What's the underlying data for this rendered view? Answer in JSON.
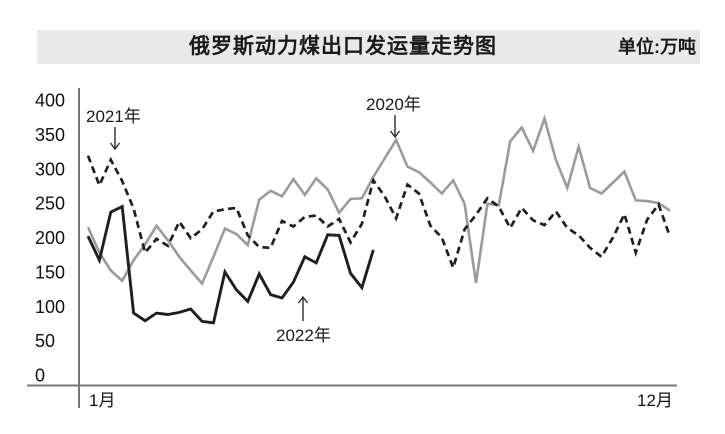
{
  "header": {
    "title": "俄罗斯动力煤出口发运量走势图",
    "unit": "单位:万吨"
  },
  "chart_data": {
    "type": "line",
    "title": "俄罗斯动力煤出口发运量走势图",
    "unit_label": "单位:万吨",
    "xlabel": "",
    "ylabel": "",
    "ylim": [
      0,
      400
    ],
    "yticks": [
      400,
      350,
      300,
      250,
      200,
      150,
      100,
      50,
      0
    ],
    "x_axis": {
      "start_label": "1月",
      "end_label": "12月",
      "frequency": "weekly"
    },
    "grid": false,
    "legend_position": "inline-annotations",
    "series": [
      {
        "name": "2020年",
        "style": "solid",
        "color": "#9b9b9b",
        "values": [
          215,
          178,
          152,
          137,
          167,
          190,
          217,
          196,
          172,
          152,
          133,
          172,
          213,
          205,
          189,
          255,
          268,
          260,
          285,
          262,
          286,
          270,
          236,
          256,
          257,
          288,
          315,
          342,
          303,
          295,
          280,
          264,
          283,
          249,
          134,
          249,
          247,
          340,
          360,
          326,
          373,
          313,
          272,
          332,
          272,
          264,
          280,
          296,
          254,
          253,
          250,
          239
        ]
      },
      {
        "name": "2021年",
        "style": "dashed",
        "color": "#1f1f1f",
        "values": [
          319,
          276,
          313,
          282,
          242,
          178,
          198,
          188,
          223,
          199,
          212,
          238,
          241,
          243,
          203,
          186,
          185,
          224,
          216,
          230,
          232,
          216,
          227,
          193,
          220,
          283,
          260,
          228,
          277,
          264,
          217,
          200,
          156,
          212,
          233,
          257,
          245,
          214,
          243,
          225,
          218,
          238,
          214,
          203,
          185,
          172,
          200,
          234,
          178,
          226,
          248,
          201
        ]
      },
      {
        "name": "2022年",
        "style": "solid",
        "color": "#1f1f1f",
        "values": [
          202,
          167,
          237,
          245,
          90,
          79,
          90,
          88,
          91,
          96,
          78,
          76,
          150,
          124,
          107,
          147,
          117,
          112,
          135,
          172,
          163,
          204,
          203,
          148,
          127,
          182
        ]
      }
    ],
    "annotations": [
      {
        "label": "2021年",
        "arrow": "down",
        "target_series": "2021年"
      },
      {
        "label": "2020年",
        "arrow": "down",
        "target_series": "2020年"
      },
      {
        "label": "2022年",
        "arrow": "up",
        "target_series": "2022年"
      }
    ]
  }
}
